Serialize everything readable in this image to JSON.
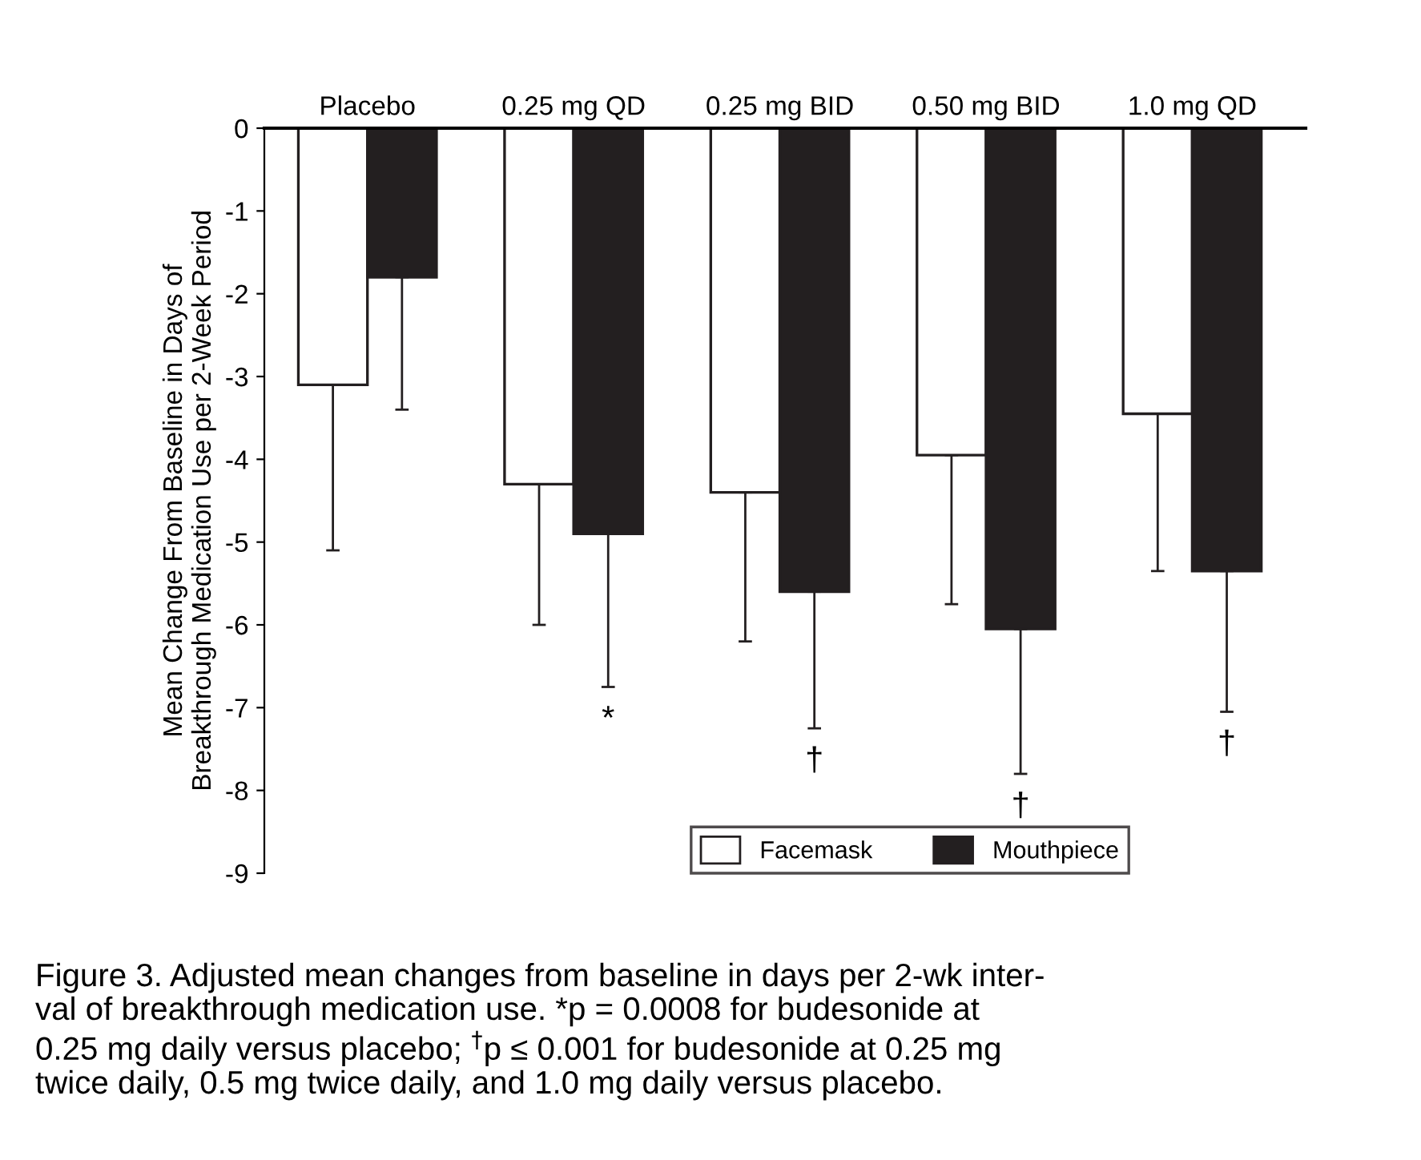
{
  "chart_data": {
    "type": "bar",
    "categories": [
      "Placebo",
      "0.25 mg QD",
      "0.25 mg BID",
      "0.50 mg BID",
      "1.0 mg QD"
    ],
    "ylabel": "Mean Change From Baseline in Days of\nBreakthrough Medication Use per 2-Week Period",
    "series": [
      {
        "name": "Facemask",
        "color": "#ffffff",
        "values": [
          -3.1,
          -4.3,
          -4.4,
          -3.95,
          -3.45
        ],
        "errors": [
          [
            -5.1,
            -3.1
          ],
          [
            -6.0,
            -4.3
          ],
          [
            -6.2,
            -4.4
          ],
          [
            -5.75,
            -3.95
          ],
          [
            -5.35,
            -3.45
          ]
        ]
      },
      {
        "name": "Mouthpiece",
        "color": "#231f20",
        "values": [
          -1.8,
          -4.9,
          -5.6,
          -6.05,
          -5.35
        ],
        "errors": [
          [
            -3.4,
            -1.8
          ],
          [
            -6.75,
            -4.9
          ],
          [
            -7.25,
            -5.6
          ],
          [
            -7.8,
            -6.05
          ],
          [
            -7.05,
            -5.35
          ]
        ]
      }
    ],
    "ylim": [
      -9,
      0
    ],
    "yticks": [
      0,
      -1,
      -2,
      -3,
      -4,
      -5,
      -6,
      -7,
      -8,
      -9
    ],
    "grid": false,
    "legend": "bottom",
    "annotations": [
      "*",
      "†",
      "†",
      "†",
      "Figure 3. Adjusted mean changes from baseline in days per 2-wk inter-\nval of breakthrough medication use. *p = 0.0008 for budesonide at\n0.25 mg daily versus placebo; $^{†}$p ≤ 0.001 for budesonide at 0.25 mg\ntwice daily, 0.5 mg twice daily, and 1.0 mg daily versus placebo."
    ]
  }
}
